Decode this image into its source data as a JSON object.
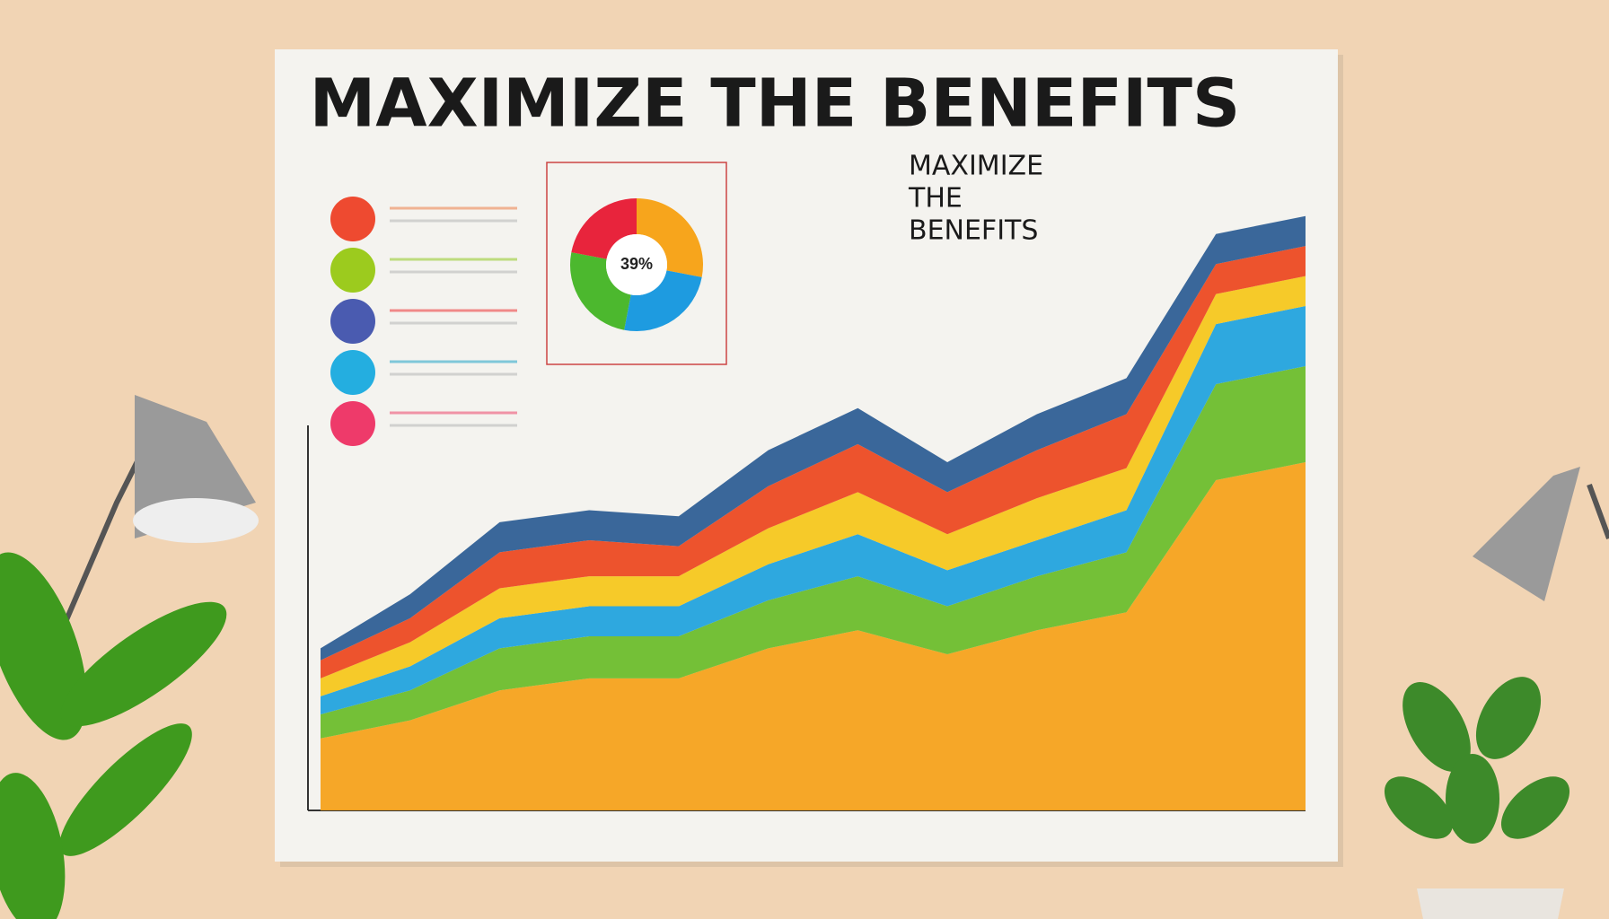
{
  "chart_data": [
    {
      "type": "stacked-area",
      "title": "MAXIMIZE THE BENEFITS",
      "annotations": [
        "MAXIMIZE",
        "THE",
        "BENEFITS"
      ],
      "categories": [
        null,
        null,
        null,
        null,
        null,
        null,
        null,
        null,
        null,
        null,
        null,
        null
      ],
      "ylim": [
        0,
        100
      ],
      "series": [
        {
          "color": "#f6a21c",
          "values": [
            12,
            15,
            20,
            22,
            22,
            27,
            30,
            26,
            30,
            33,
            55,
            58
          ]
        },
        {
          "color": "#6dbd2c",
          "values": [
            4,
            5,
            7,
            7,
            7,
            8,
            9,
            8,
            9,
            10,
            16,
            16
          ]
        },
        {
          "color": "#23a3dd",
          "values": [
            3,
            4,
            5,
            5,
            5,
            6,
            7,
            6,
            6,
            7,
            10,
            10
          ]
        },
        {
          "color": "#f5c71e",
          "values": [
            3,
            4,
            5,
            5,
            5,
            6,
            7,
            6,
            7,
            7,
            5,
            5
          ]
        },
        {
          "color": "#ec4a22",
          "values": [
            3,
            4,
            6,
            6,
            5,
            7,
            8,
            7,
            8,
            9,
            5,
            5
          ]
        },
        {
          "color": "#2f5f95",
          "values": [
            2,
            4,
            5,
            5,
            5,
            6,
            6,
            5,
            6,
            6,
            5,
            5
          ]
        }
      ]
    },
    {
      "type": "pie",
      "center_label": "39%",
      "values": [
        28,
        25,
        25,
        22
      ],
      "colors": [
        "#f7a51c",
        "#1e9be0",
        "#4cb82e",
        "#e8243c"
      ]
    }
  ]
}
